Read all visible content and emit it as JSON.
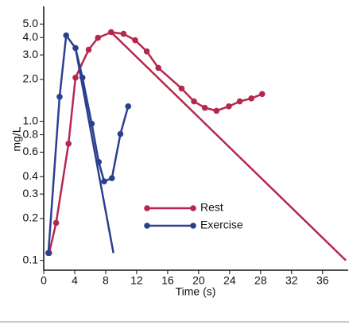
{
  "chart_data": {
    "type": "line",
    "x_label": "Time (s)",
    "y_label": "mg/L",
    "log_y": true,
    "xlim": [
      0,
      39
    ],
    "ylim": [
      0.085,
      6.7
    ],
    "xticks": [
      0,
      4,
      8,
      12,
      16,
      20,
      24,
      28,
      32,
      36
    ],
    "yticks": [
      0.1,
      0.2,
      0.3,
      0.4,
      0.6,
      0.8,
      {
        "value": 1,
        "label": "1.0"
      },
      {
        "value": 2,
        "label": "2.0"
      },
      {
        "value": 3,
        "label": "3.0"
      },
      {
        "value": 4,
        "label": "4.0"
      },
      {
        "value": 5,
        "label": "5.0"
      }
    ],
    "legend": "center",
    "series": [
      {
        "name": "Rest",
        "color": "#b5284e",
        "x": [
          0.7,
          1.6,
          3.2,
          4.1,
          5.8,
          7.0,
          8.7,
          10.3,
          11.8,
          13.3,
          14.8,
          17.8,
          19.4,
          20.8,
          22.3,
          23.9,
          25.3,
          26.8,
          28.2
        ],
        "values": [
          0.113,
          0.186,
          0.69,
          2.06,
          3.27,
          3.98,
          4.37,
          4.25,
          3.83,
          3.18,
          2.42,
          1.72,
          1.39,
          1.25,
          1.19,
          1.28,
          1.39,
          1.46,
          1.57
        ],
        "extrapolation": {
          "x": [
            8.7,
            39
          ],
          "values": [
            4.37,
            0.1
          ]
        }
      },
      {
        "name": "Exercise",
        "color": "#2b3f8f",
        "x": [
          0.6,
          2.05,
          2.9,
          4.1,
          5.0,
          6.2,
          7.1,
          7.8,
          8.8,
          9.9,
          10.9
        ],
        "values": [
          0.113,
          1.5,
          4.14,
          3.36,
          2.06,
          0.96,
          0.51,
          0.37,
          0.39,
          0.81,
          1.28
        ],
        "extrapolation": {
          "x": [
            4.1,
            9.0
          ],
          "values": [
            3.36,
            0.113
          ]
        }
      }
    ]
  }
}
